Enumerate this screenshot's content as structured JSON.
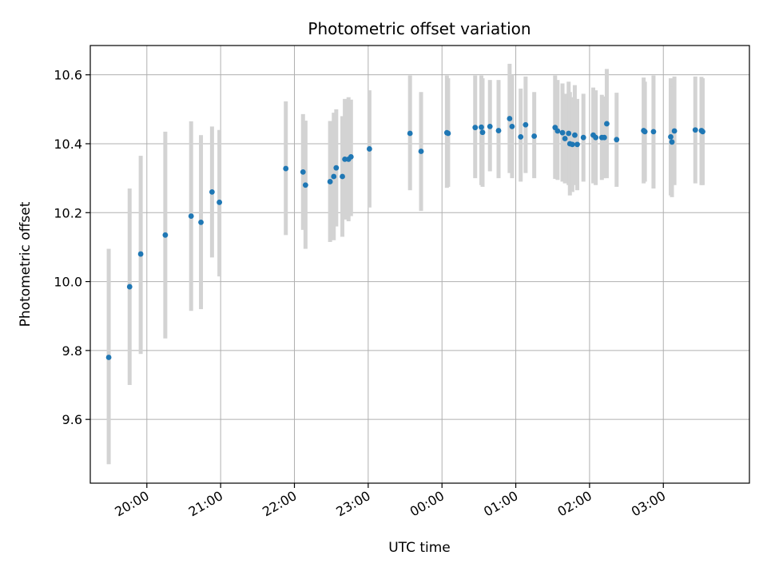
{
  "chart_data": {
    "type": "scatter",
    "title": "Photometric offset variation",
    "xlabel": "UTC time",
    "ylabel": "Photometric offset",
    "x_unit": "time of day (UTC)",
    "xlim": [
      "19:14",
      "04:10"
    ],
    "ylim": [
      9.415,
      10.685
    ],
    "x_ticks": [
      "20:00",
      "21:00",
      "22:00",
      "23:00",
      "00:00",
      "01:00",
      "02:00",
      "03:00"
    ],
    "y_ticks": [
      "9.6",
      "9.8",
      "10.0",
      "10.2",
      "10.4",
      "10.6"
    ],
    "grid": true,
    "legend": "none",
    "colors": {
      "point": "#1f77b4",
      "error_bar": "#d3d3d3",
      "grid": "#b0b0b0"
    },
    "series": [
      {
        "points": [
          {
            "x": "19:29",
            "y": 9.78,
            "ylo": 9.47,
            "yhi": 10.095
          },
          {
            "x": "19:46",
            "y": 9.985,
            "ylo": 9.7,
            "yhi": 10.27
          },
          {
            "x": "19:55",
            "y": 10.08,
            "ylo": 9.79,
            "yhi": 10.365
          },
          {
            "x": "20:15",
            "y": 10.135,
            "ylo": 9.835,
            "yhi": 10.435
          },
          {
            "x": "20:36",
            "y": 10.19,
            "ylo": 9.915,
            "yhi": 10.465
          },
          {
            "x": "20:44",
            "y": 10.172,
            "ylo": 9.92,
            "yhi": 10.425
          },
          {
            "x": "20:53",
            "y": 10.26,
            "ylo": 10.07,
            "yhi": 10.45
          },
          {
            "x": "20:59",
            "y": 10.23,
            "ylo": 10.015,
            "yhi": 10.44
          },
          {
            "x": "21:53",
            "y": 10.328,
            "ylo": 10.135,
            "yhi": 10.523
          },
          {
            "x": "22:07",
            "y": 10.318,
            "ylo": 10.15,
            "yhi": 10.486
          },
          {
            "x": "22:09",
            "y": 10.28,
            "ylo": 10.095,
            "yhi": 10.467
          },
          {
            "x": "22:29",
            "y": 10.29,
            "ylo": 10.115,
            "yhi": 10.466
          },
          {
            "x": "22:32",
            "y": 10.305,
            "ylo": 10.12,
            "yhi": 10.49
          },
          {
            "x": "22:34",
            "y": 10.33,
            "ylo": 10.16,
            "yhi": 10.5
          },
          {
            "x": "22:39",
            "y": 10.305,
            "ylo": 10.13,
            "yhi": 10.48
          },
          {
            "x": "22:41",
            "y": 10.355,
            "ylo": 10.18,
            "yhi": 10.53
          },
          {
            "x": "22:44",
            "y": 10.355,
            "ylo": 10.175,
            "yhi": 10.535
          },
          {
            "x": "22:46",
            "y": 10.362,
            "ylo": 10.19,
            "yhi": 10.528
          },
          {
            "x": "23:01",
            "y": 10.385,
            "ylo": 10.215,
            "yhi": 10.555
          },
          {
            "x": "23:34",
            "y": 10.43,
            "ylo": 10.265,
            "yhi": 10.598
          },
          {
            "x": "23:43",
            "y": 10.378,
            "ylo": 10.205,
            "yhi": 10.55
          },
          {
            "x": "00:04",
            "y": 10.432,
            "ylo": 10.272,
            "yhi": 10.598
          },
          {
            "x": "00:05",
            "y": 10.43,
            "ylo": 10.275,
            "yhi": 10.59
          },
          {
            "x": "00:27",
            "y": 10.447,
            "ylo": 10.3,
            "yhi": 10.598
          },
          {
            "x": "00:32",
            "y": 10.448,
            "ylo": 10.28,
            "yhi": 10.598
          },
          {
            "x": "00:33",
            "y": 10.433,
            "ylo": 10.275,
            "yhi": 10.59
          },
          {
            "x": "00:39",
            "y": 10.45,
            "ylo": 10.32,
            "yhi": 10.585
          },
          {
            "x": "00:46",
            "y": 10.438,
            "ylo": 10.3,
            "yhi": 10.585
          },
          {
            "x": "00:55",
            "y": 10.473,
            "ylo": 10.315,
            "yhi": 10.632
          },
          {
            "x": "00:57",
            "y": 10.45,
            "ylo": 10.3,
            "yhi": 10.6
          },
          {
            "x": "01:04",
            "y": 10.42,
            "ylo": 10.29,
            "yhi": 10.56
          },
          {
            "x": "01:08",
            "y": 10.455,
            "ylo": 10.315,
            "yhi": 10.595
          },
          {
            "x": "01:15",
            "y": 10.422,
            "ylo": 10.3,
            "yhi": 10.55
          },
          {
            "x": "01:32",
            "y": 10.447,
            "ylo": 10.298,
            "yhi": 10.598
          },
          {
            "x": "01:34",
            "y": 10.437,
            "ylo": 10.295,
            "yhi": 10.585
          },
          {
            "x": "01:38",
            "y": 10.432,
            "ylo": 10.29,
            "yhi": 10.575
          },
          {
            "x": "01:40",
            "y": 10.415,
            "ylo": 10.285,
            "yhi": 10.545
          },
          {
            "x": "01:43",
            "y": 10.43,
            "ylo": 10.28,
            "yhi": 10.58
          },
          {
            "x": "01:44",
            "y": 10.4,
            "ylo": 10.25,
            "yhi": 10.55
          },
          {
            "x": "01:46",
            "y": 10.398,
            "ylo": 10.26,
            "yhi": 10.535
          },
          {
            "x": "01:48",
            "y": 10.425,
            "ylo": 10.28,
            "yhi": 10.57
          },
          {
            "x": "01:50",
            "y": 10.398,
            "ylo": 10.265,
            "yhi": 10.53
          },
          {
            "x": "01:55",
            "y": 10.418,
            "ylo": 10.29,
            "yhi": 10.545
          },
          {
            "x": "02:03",
            "y": 10.425,
            "ylo": 10.285,
            "yhi": 10.563
          },
          {
            "x": "02:05",
            "y": 10.418,
            "ylo": 10.28,
            "yhi": 10.555
          },
          {
            "x": "02:10",
            "y": 10.418,
            "ylo": 10.295,
            "yhi": 10.542
          },
          {
            "x": "02:12",
            "y": 10.418,
            "ylo": 10.3,
            "yhi": 10.537
          },
          {
            "x": "02:14",
            "y": 10.458,
            "ylo": 10.3,
            "yhi": 10.617
          },
          {
            "x": "02:22",
            "y": 10.412,
            "ylo": 10.275,
            "yhi": 10.548
          },
          {
            "x": "02:44",
            "y": 10.438,
            "ylo": 10.285,
            "yhi": 10.592
          },
          {
            "x": "02:45",
            "y": 10.435,
            "ylo": 10.29,
            "yhi": 10.58
          },
          {
            "x": "02:52",
            "y": 10.435,
            "ylo": 10.27,
            "yhi": 10.598
          },
          {
            "x": "03:06",
            "y": 10.42,
            "ylo": 10.25,
            "yhi": 10.59
          },
          {
            "x": "03:07",
            "y": 10.405,
            "ylo": 10.245,
            "yhi": 10.565
          },
          {
            "x": "03:09",
            "y": 10.437,
            "ylo": 10.28,
            "yhi": 10.595
          },
          {
            "x": "03:26",
            "y": 10.44,
            "ylo": 10.285,
            "yhi": 10.595
          },
          {
            "x": "03:31",
            "y": 10.438,
            "ylo": 10.28,
            "yhi": 10.594
          },
          {
            "x": "03:32",
            "y": 10.435,
            "ylo": 10.28,
            "yhi": 10.59
          }
        ]
      }
    ]
  }
}
